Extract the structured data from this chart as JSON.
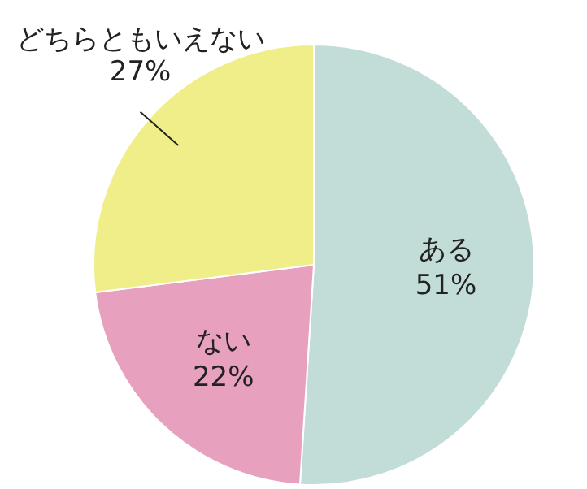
{
  "chart_data": {
    "type": "pie",
    "categories": [
      "ある",
      "ない",
      "どちらともいえない"
    ],
    "values": [
      51,
      22,
      27
    ],
    "colors": [
      "#c2dcd8",
      "#e8a0bf",
      "#f0ee88"
    ],
    "value_labels": [
      "51%",
      "22%",
      "27%"
    ],
    "legend": false
  }
}
